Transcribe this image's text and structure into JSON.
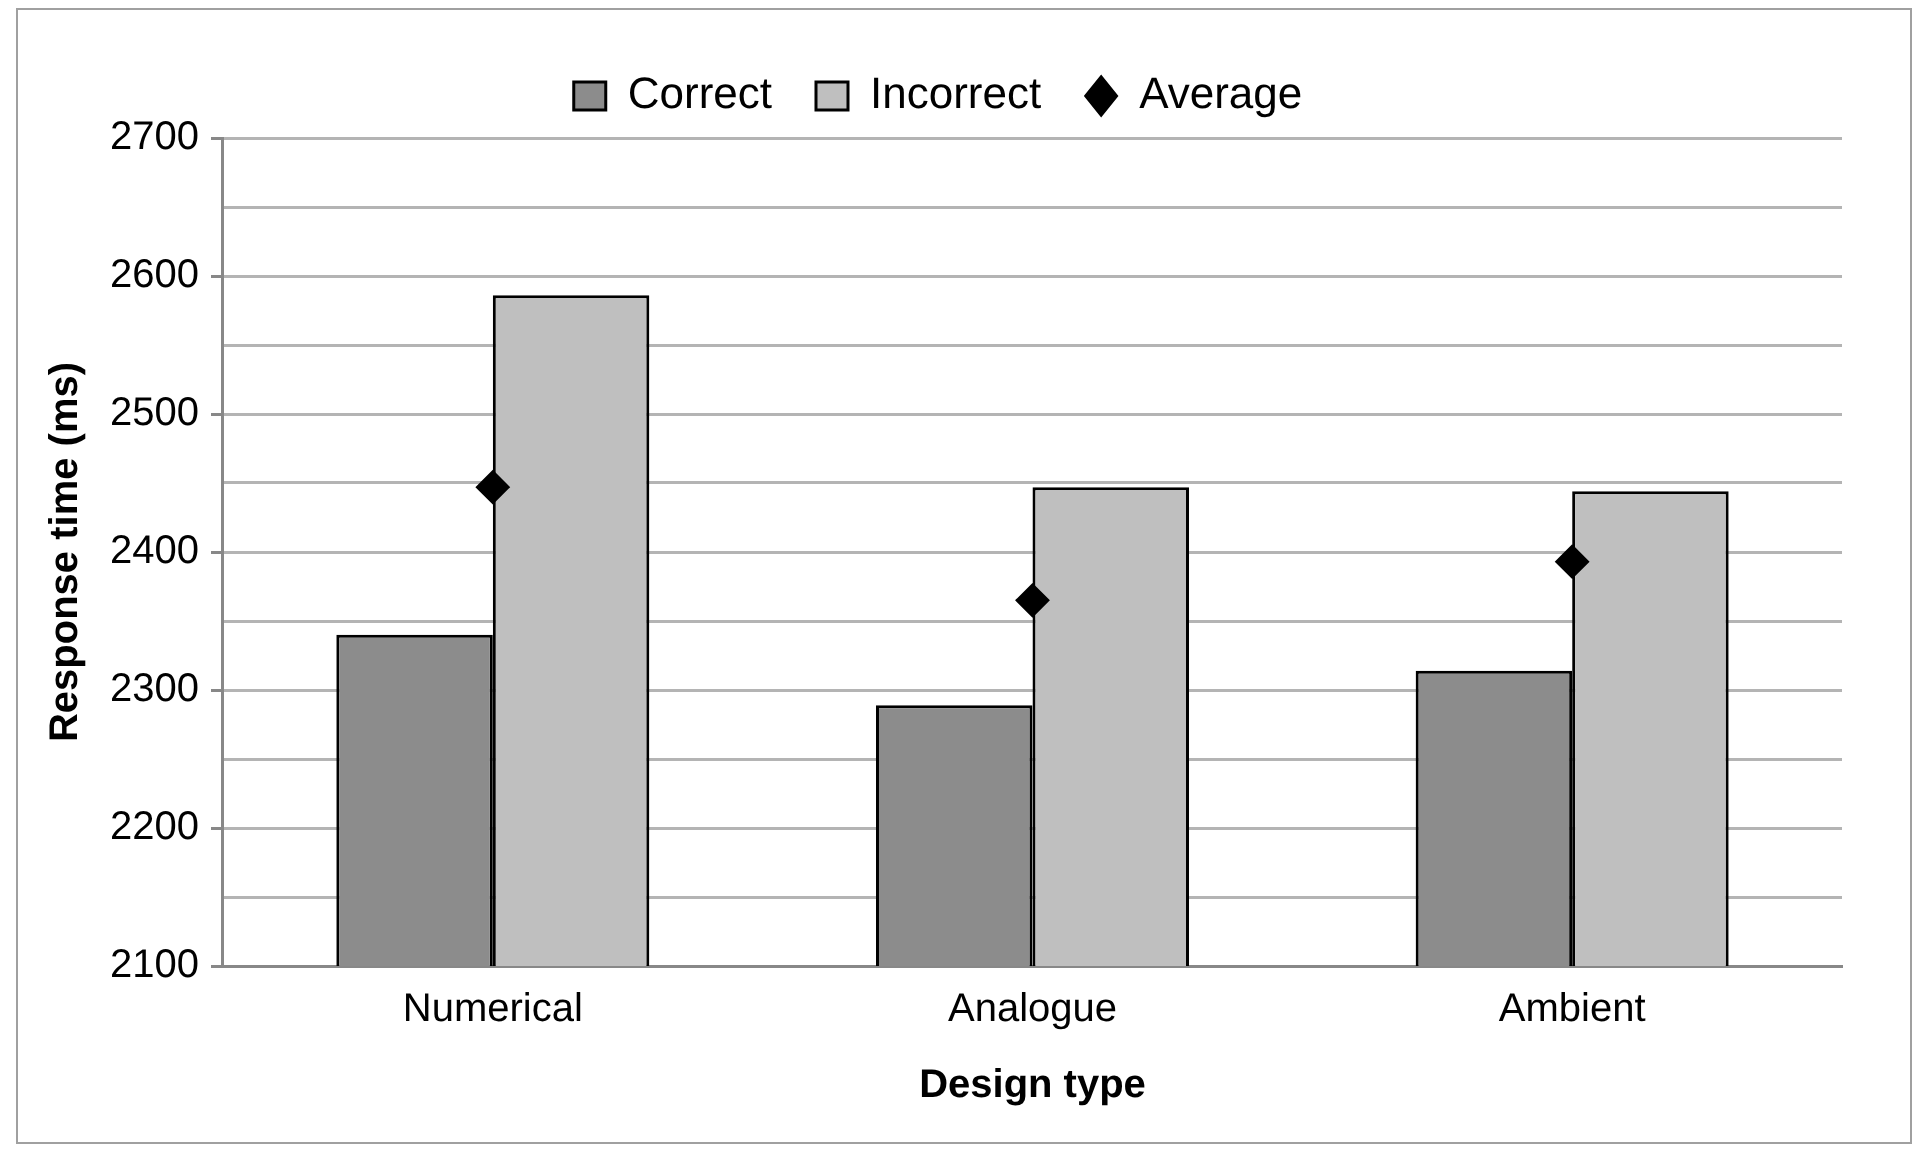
{
  "chart_data": {
    "type": "bar",
    "xlabel": "Design type",
    "ylabel": "Response time (ms)",
    "categories": [
      "Numerical",
      "Analogue",
      "Ambient"
    ],
    "series": [
      {
        "name": "Correct",
        "color": "#8c8c8c",
        "values": [
          2340,
          2289,
          2314
        ]
      },
      {
        "name": "Incorrect",
        "color": "#bfbfbf",
        "values": [
          2586,
          2447,
          2444
        ]
      },
      {
        "name": "Average",
        "type": "scatter",
        "color": "#000000",
        "marker": "diamond",
        "x": [
          "Numerical",
          "Analogue",
          "Ambient"
        ],
        "values": [
          2447,
          2365,
          2393
        ]
      }
    ],
    "ylim": [
      2100,
      2700
    ],
    "yticks": [
      2100,
      {
        "value": 2150,
        "label": null
      },
      2200,
      {
        "value": 2250,
        "label": null
      },
      2300,
      {
        "value": 2350,
        "label": null
      },
      2400,
      {
        "value": 2450,
        "label": null
      },
      2500,
      {
        "value": 2550,
        "label": null
      },
      2600,
      {
        "value": 2650,
        "label": null
      },
      2700
    ],
    "grid": "y",
    "legend": "top"
  }
}
